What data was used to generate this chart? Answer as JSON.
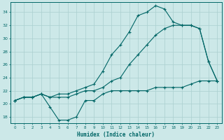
{
  "xlabel": "Humidex (Indice chaleur)",
  "xlim": [
    -0.5,
    23.5
  ],
  "ylim": [
    17,
    35.5
  ],
  "yticks": [
    18,
    20,
    22,
    24,
    26,
    28,
    30,
    32,
    34
  ],
  "xticks": [
    0,
    1,
    2,
    3,
    4,
    5,
    6,
    7,
    8,
    9,
    10,
    11,
    12,
    13,
    14,
    15,
    16,
    17,
    18,
    19,
    20,
    21,
    22,
    23
  ],
  "bg_color": "#cce8e8",
  "grid_color": "#aacfcf",
  "line_color": "#006666",
  "line1_x": [
    0,
    1,
    2,
    3,
    4,
    5,
    6,
    7,
    8,
    9,
    10,
    11,
    12,
    13,
    14,
    15,
    16,
    17,
    18,
    19,
    20,
    21,
    22,
    23
  ],
  "line1_y": [
    20.5,
    21.0,
    21.0,
    21.5,
    19.5,
    17.5,
    17.5,
    18.0,
    20.5,
    20.5,
    21.5,
    22.0,
    22.0,
    22.0,
    22.0,
    22.0,
    22.5,
    22.5,
    22.5,
    22.5,
    23.0,
    23.5,
    23.5,
    23.5
  ],
  "line2_x": [
    0,
    1,
    2,
    3,
    4,
    5,
    6,
    7,
    8,
    9,
    10,
    11,
    12,
    13,
    14,
    15,
    16,
    17,
    18,
    19,
    20,
    21,
    22,
    23
  ],
  "line2_y": [
    20.5,
    21.0,
    21.0,
    21.5,
    21.0,
    21.0,
    21.0,
    21.5,
    22.0,
    22.0,
    22.5,
    23.5,
    24.0,
    26.0,
    27.5,
    29.0,
    30.5,
    31.5,
    32.0,
    32.0,
    32.0,
    31.5,
    26.5,
    23.5
  ],
  "line3_x": [
    0,
    1,
    2,
    3,
    4,
    5,
    6,
    7,
    8,
    9,
    10,
    11,
    12,
    13,
    14,
    15,
    16,
    17,
    18,
    19,
    20,
    21,
    22,
    23
  ],
  "line3_y": [
    20.5,
    21.0,
    21.0,
    21.5,
    21.0,
    21.5,
    21.5,
    22.0,
    22.5,
    23.0,
    25.0,
    27.5,
    29.0,
    31.0,
    33.5,
    34.0,
    35.0,
    34.5,
    32.5,
    32.0,
    32.0,
    31.5,
    26.5,
    23.5
  ]
}
